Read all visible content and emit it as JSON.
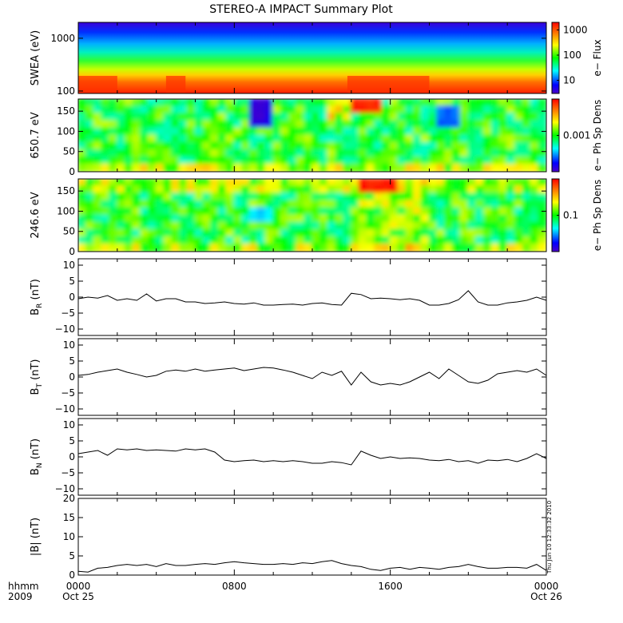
{
  "title": "STEREO-A IMPACT Summary Plot",
  "time_axis": {
    "row1_label": "hhmm",
    "row2_label": "2009",
    "ticks": [
      {
        "hour": 0,
        "label": "0000",
        "date": "Oct 25"
      },
      {
        "hour": 8,
        "label": "0800",
        "date": ""
      },
      {
        "hour": 16,
        "label": "1600",
        "date": ""
      },
      {
        "hour": 24,
        "label": "0000",
        "date": "Oct 26"
      }
    ]
  },
  "timestamp": "Thu Jun 10 12:33:32 2010",
  "chart_data": [
    {
      "id": "swea",
      "type": "heatmap",
      "ylabel": "SWEA (eV)",
      "yscale": "log",
      "ylim": [
        90,
        2000
      ],
      "ytick_labels": [
        {
          "value": 100,
          "label": "100"
        },
        {
          "value": 1000,
          "label": "1000"
        }
      ],
      "colorbar": {
        "label": "e− Flux",
        "scale": "log",
        "range": [
          3,
          2000
        ],
        "ticks": [
          {
            "value": 10,
            "label": "10"
          },
          {
            "value": 100,
            "label": "100"
          },
          {
            "value": 1000,
            "label": "1000"
          }
        ]
      },
      "time_hours": [
        0,
        24
      ],
      "description_levels": {
        "low_energy": "high flux (red)",
        "high_energy": "low flux (blue)"
      }
    },
    {
      "id": "pad650",
      "type": "heatmap",
      "ylabel": "650.7 eV",
      "ylim": [
        0,
        180
      ],
      "ytick_labels": [
        {
          "value": 0,
          "label": "0"
        },
        {
          "value": 50,
          "label": "50"
        },
        {
          "value": 100,
          "label": "100"
        },
        {
          "value": 150,
          "label": "150"
        }
      ],
      "colorbar": {
        "label": "e− Ph Sp Dens",
        "scale": "log",
        "ticks": [
          {
            "value": 0.5,
            "label": "0.001"
          }
        ]
      },
      "features": [
        {
          "t_start": 8.6,
          "t_end": 9.8,
          "pa_start": 100,
          "pa_end": 180,
          "level": 0.05
        },
        {
          "t_start": 13.8,
          "t_end": 15.2,
          "pa_start": 150,
          "pa_end": 180,
          "level": 0.95
        },
        {
          "t_start": 18.2,
          "t_end": 19.2,
          "pa_start": 110,
          "pa_end": 170,
          "level": 0.2
        }
      ]
    },
    {
      "id": "pad246",
      "type": "heatmap",
      "ylabel": "246.6 eV",
      "ylim": [
        0,
        180
      ],
      "ytick_labels": [
        {
          "value": 0,
          "label": "0"
        },
        {
          "value": 50,
          "label": "50"
        },
        {
          "value": 100,
          "label": "100"
        },
        {
          "value": 150,
          "label": "150"
        }
      ],
      "colorbar": {
        "label": "e− Ph Sp Dens",
        "scale": "log",
        "ticks": [
          {
            "value": 0.5,
            "label": "0.1"
          }
        ]
      },
      "features": [
        {
          "t_start": 14.2,
          "t_end": 16.2,
          "pa_start": 150,
          "pa_end": 180,
          "level": 0.97
        },
        {
          "t_start": 8.8,
          "t_end": 9.8,
          "pa_start": 80,
          "pa_end": 110,
          "level": 0.3
        }
      ]
    },
    {
      "id": "br",
      "type": "line",
      "ylabel_main": "B",
      "ylabel_sub": "R",
      "ylabel_unit": " (nT)",
      "ylim": [
        -12,
        12
      ],
      "ytick_labels": [
        {
          "value": -10,
          "label": "−10"
        },
        {
          "value": -5,
          "label": "−5"
        },
        {
          "value": 0,
          "label": "0"
        },
        {
          "value": 5,
          "label": "5"
        },
        {
          "value": 10,
          "label": "10"
        }
      ],
      "x": [
        0,
        0.5,
        1,
        1.5,
        2,
        2.5,
        3,
        3.5,
        4,
        4.5,
        5,
        5.5,
        6,
        6.5,
        7,
        7.5,
        8,
        8.5,
        9,
        9.5,
        10,
        10.5,
        11,
        11.5,
        12,
        12.5,
        13,
        13.5,
        14,
        14.5,
        15,
        15.5,
        16,
        16.5,
        17,
        17.5,
        18,
        18.5,
        19,
        19.5,
        20,
        20.5,
        21,
        21.5,
        22,
        22.5,
        23,
        23.5,
        24
      ],
      "y": [
        -0.5,
        0,
        -0.3,
        0.5,
        -1,
        -0.5,
        -1,
        1,
        -1.2,
        -0.5,
        -0.5,
        -1.5,
        -1.5,
        -2,
        -1.8,
        -1.5,
        -2,
        -2.2,
        -1.8,
        -2.5,
        -2.5,
        -2.3,
        -2.2,
        -2.5,
        -2,
        -1.8,
        -2.3,
        -2.5,
        1.2,
        0.8,
        -0.5,
        -0.3,
        -0.5,
        -0.8,
        -0.5,
        -1,
        -2.5,
        -2.5,
        -2,
        -0.8,
        2,
        -1.5,
        -2.5,
        -2.5,
        -1.8,
        -1.5,
        -1,
        0,
        -1
      ]
    },
    {
      "id": "bt",
      "type": "line",
      "ylabel_main": "B",
      "ylabel_sub": "T",
      "ylabel_unit": " (nT)",
      "ylim": [
        -12,
        12
      ],
      "ytick_labels": [
        {
          "value": -10,
          "label": "−10"
        },
        {
          "value": -5,
          "label": "−5"
        },
        {
          "value": 0,
          "label": "0"
        },
        {
          "value": 5,
          "label": "5"
        },
        {
          "value": 10,
          "label": "10"
        }
      ],
      "x": [
        0,
        0.5,
        1,
        1.5,
        2,
        2.5,
        3,
        3.5,
        4,
        4.5,
        5,
        5.5,
        6,
        6.5,
        7,
        7.5,
        8,
        8.5,
        9,
        9.5,
        10,
        10.5,
        11,
        11.5,
        12,
        12.5,
        13,
        13.5,
        14,
        14.5,
        15,
        15.5,
        16,
        16.5,
        17,
        17.5,
        18,
        18.5,
        19,
        19.5,
        20,
        20.5,
        21,
        21.5,
        22,
        22.5,
        23,
        23.5,
        24
      ],
      "y": [
        0.5,
        0.8,
        1.5,
        2,
        2.5,
        1.5,
        0.8,
        0,
        0.5,
        1.8,
        2.2,
        1.8,
        2.5,
        1.8,
        2.2,
        2.5,
        2.8,
        2,
        2.5,
        3,
        2.8,
        2.2,
        1.5,
        0.5,
        -0.5,
        1.5,
        0.5,
        1.8,
        -2.5,
        1.5,
        -1.5,
        -2.5,
        -2,
        -2.5,
        -1.5,
        0,
        1.5,
        -0.5,
        2.5,
        0.5,
        -1.5,
        -2,
        -1,
        1,
        1.5,
        2,
        1.5,
        2.5,
        0.5
      ]
    },
    {
      "id": "bn",
      "type": "line",
      "ylabel_main": "B",
      "ylabel_sub": "N",
      "ylabel_unit": " (nT)",
      "ylim": [
        -12,
        12
      ],
      "ytick_labels": [
        {
          "value": -10,
          "label": "−10"
        },
        {
          "value": -5,
          "label": "−5"
        },
        {
          "value": 0,
          "label": "0"
        },
        {
          "value": 5,
          "label": "5"
        },
        {
          "value": 10,
          "label": "10"
        }
      ],
      "x": [
        0,
        0.5,
        1,
        1.5,
        2,
        2.5,
        3,
        3.5,
        4,
        4.5,
        5,
        5.5,
        6,
        6.5,
        7,
        7.5,
        8,
        8.5,
        9,
        9.5,
        10,
        10.5,
        11,
        11.5,
        12,
        12.5,
        13,
        13.5,
        14,
        14.5,
        15,
        15.5,
        16,
        16.5,
        17,
        17.5,
        18,
        18.5,
        19,
        19.5,
        20,
        20.5,
        21,
        21.5,
        22,
        22.5,
        23,
        23.5,
        24
      ],
      "y": [
        1,
        1.5,
        2,
        0.5,
        2.5,
        2.2,
        2.5,
        2,
        2.2,
        2,
        1.8,
        2.5,
        2.2,
        2.5,
        1.5,
        -1,
        -1.5,
        -1.2,
        -1,
        -1.5,
        -1.2,
        -1.5,
        -1.2,
        -1.5,
        -2,
        -2,
        -1.5,
        -1.8,
        -2.5,
        1.8,
        0.5,
        -0.5,
        0,
        -0.5,
        -0.3,
        -0.5,
        -1,
        -1.2,
        -0.8,
        -1.5,
        -1.2,
        -2,
        -1,
        -1.2,
        -0.8,
        -1.5,
        -0.5,
        1,
        -0.5
      ]
    },
    {
      "id": "bmag",
      "type": "line",
      "ylabel_main": "|B| (nT)",
      "ylim": [
        0,
        20
      ],
      "ytick_labels": [
        {
          "value": 0,
          "label": "0"
        },
        {
          "value": 5,
          "label": "5"
        },
        {
          "value": 10,
          "label": "10"
        },
        {
          "value": 15,
          "label": "15"
        },
        {
          "value": 20,
          "label": "20"
        }
      ],
      "x": [
        0,
        0.5,
        1,
        1.5,
        2,
        2.5,
        3,
        3.5,
        4,
        4.5,
        5,
        5.5,
        6,
        6.5,
        7,
        7.5,
        8,
        8.5,
        9,
        9.5,
        10,
        10.5,
        11,
        11.5,
        12,
        12.5,
        13,
        13.5,
        14,
        14.5,
        15,
        15.5,
        16,
        16.5,
        17,
        17.5,
        18,
        18.5,
        19,
        19.5,
        20,
        20.5,
        21,
        21.5,
        22,
        22.5,
        23,
        23.5,
        24
      ],
      "y": [
        1,
        0.8,
        1.8,
        2,
        2.5,
        2.8,
        2.5,
        2.8,
        2.2,
        3,
        2.5,
        2.5,
        2.8,
        3,
        2.8,
        3.2,
        3.5,
        3.2,
        3,
        2.8,
        2.8,
        3,
        2.8,
        3.2,
        3,
        3.5,
        3.8,
        3,
        2.5,
        2.2,
        1.5,
        1.2,
        1.8,
        2,
        1.5,
        2,
        1.8,
        1.5,
        2,
        2.2,
        2.8,
        2.2,
        1.8,
        1.8,
        2,
        2,
        1.8,
        2.8,
        1.2
      ]
    }
  ]
}
